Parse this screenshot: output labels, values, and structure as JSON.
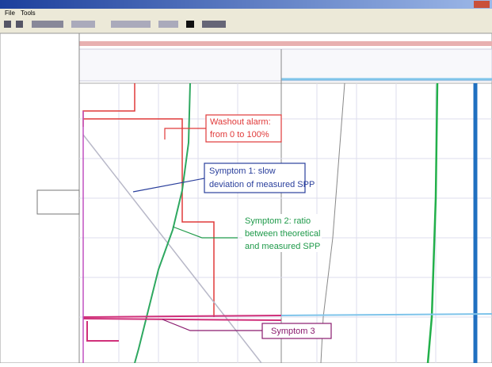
{
  "menu": {
    "items": [
      "File",
      "Tools"
    ]
  },
  "annotations": {
    "washout": {
      "lines": [
        "Washout alarm:",
        "from 0 to 100%"
      ]
    },
    "symptom1": {
      "lines": [
        "Symptom 1: slow",
        "deviation of measured SPP"
      ]
    },
    "symptom2": {
      "lines": [
        "Symptom 2: ratio",
        "between theoretical",
        "and measured SPP"
      ]
    },
    "symptom3": {
      "lines": [
        "Symptom 3"
      ]
    }
  }
}
